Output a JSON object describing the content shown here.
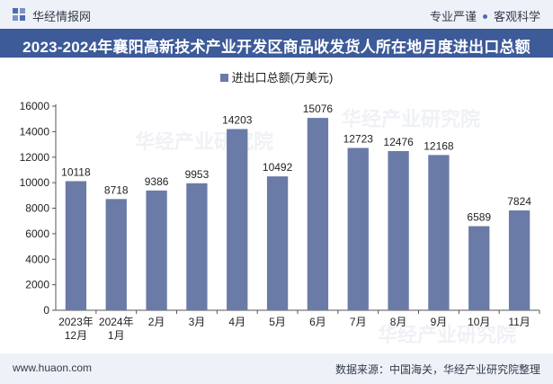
{
  "header": {
    "logo_text": "华经情报网",
    "tagline_left": "专业严谨",
    "tagline_right": "客观科学"
  },
  "title": "2023-2024年襄阳高新技术产业开发区商品收发货人所在地月度进出口总额",
  "footer": {
    "website": "www.huaon.com",
    "source": "数据来源：中国海关，华经产业研究院整理"
  },
  "watermarks": [
    "华经产业研究院",
    "华经产业研究院",
    "华经产业研究院"
  ],
  "colors": {
    "bar": "#6a7ba7",
    "title_bg": "#3d5a99",
    "band_bg": "#eef2f8"
  },
  "chart_data": {
    "type": "bar",
    "title": "2023-2024年襄阳高新技术产业开发区商品收发货人所在地月度进出口总额",
    "legend": "进出口总额(万美元)",
    "categories": [
      [
        "2023年",
        "12月"
      ],
      [
        "2024年",
        "1月"
      ],
      [
        "2月"
      ],
      [
        "3月"
      ],
      [
        "4月"
      ],
      [
        "5月"
      ],
      [
        "6月"
      ],
      [
        "7月"
      ],
      [
        "8月"
      ],
      [
        "9月"
      ],
      [
        "10月"
      ],
      [
        "11月"
      ]
    ],
    "values": [
      10118,
      8718,
      9386,
      9953,
      14203,
      10492,
      15076,
      12723,
      12476,
      12168,
      6589,
      7824
    ],
    "yticks": [
      0,
      2000,
      4000,
      6000,
      8000,
      10000,
      12000,
      14000,
      16000
    ],
    "ylim": [
      0,
      16000
    ],
    "xlabel": "",
    "ylabel": "",
    "grid": false
  }
}
